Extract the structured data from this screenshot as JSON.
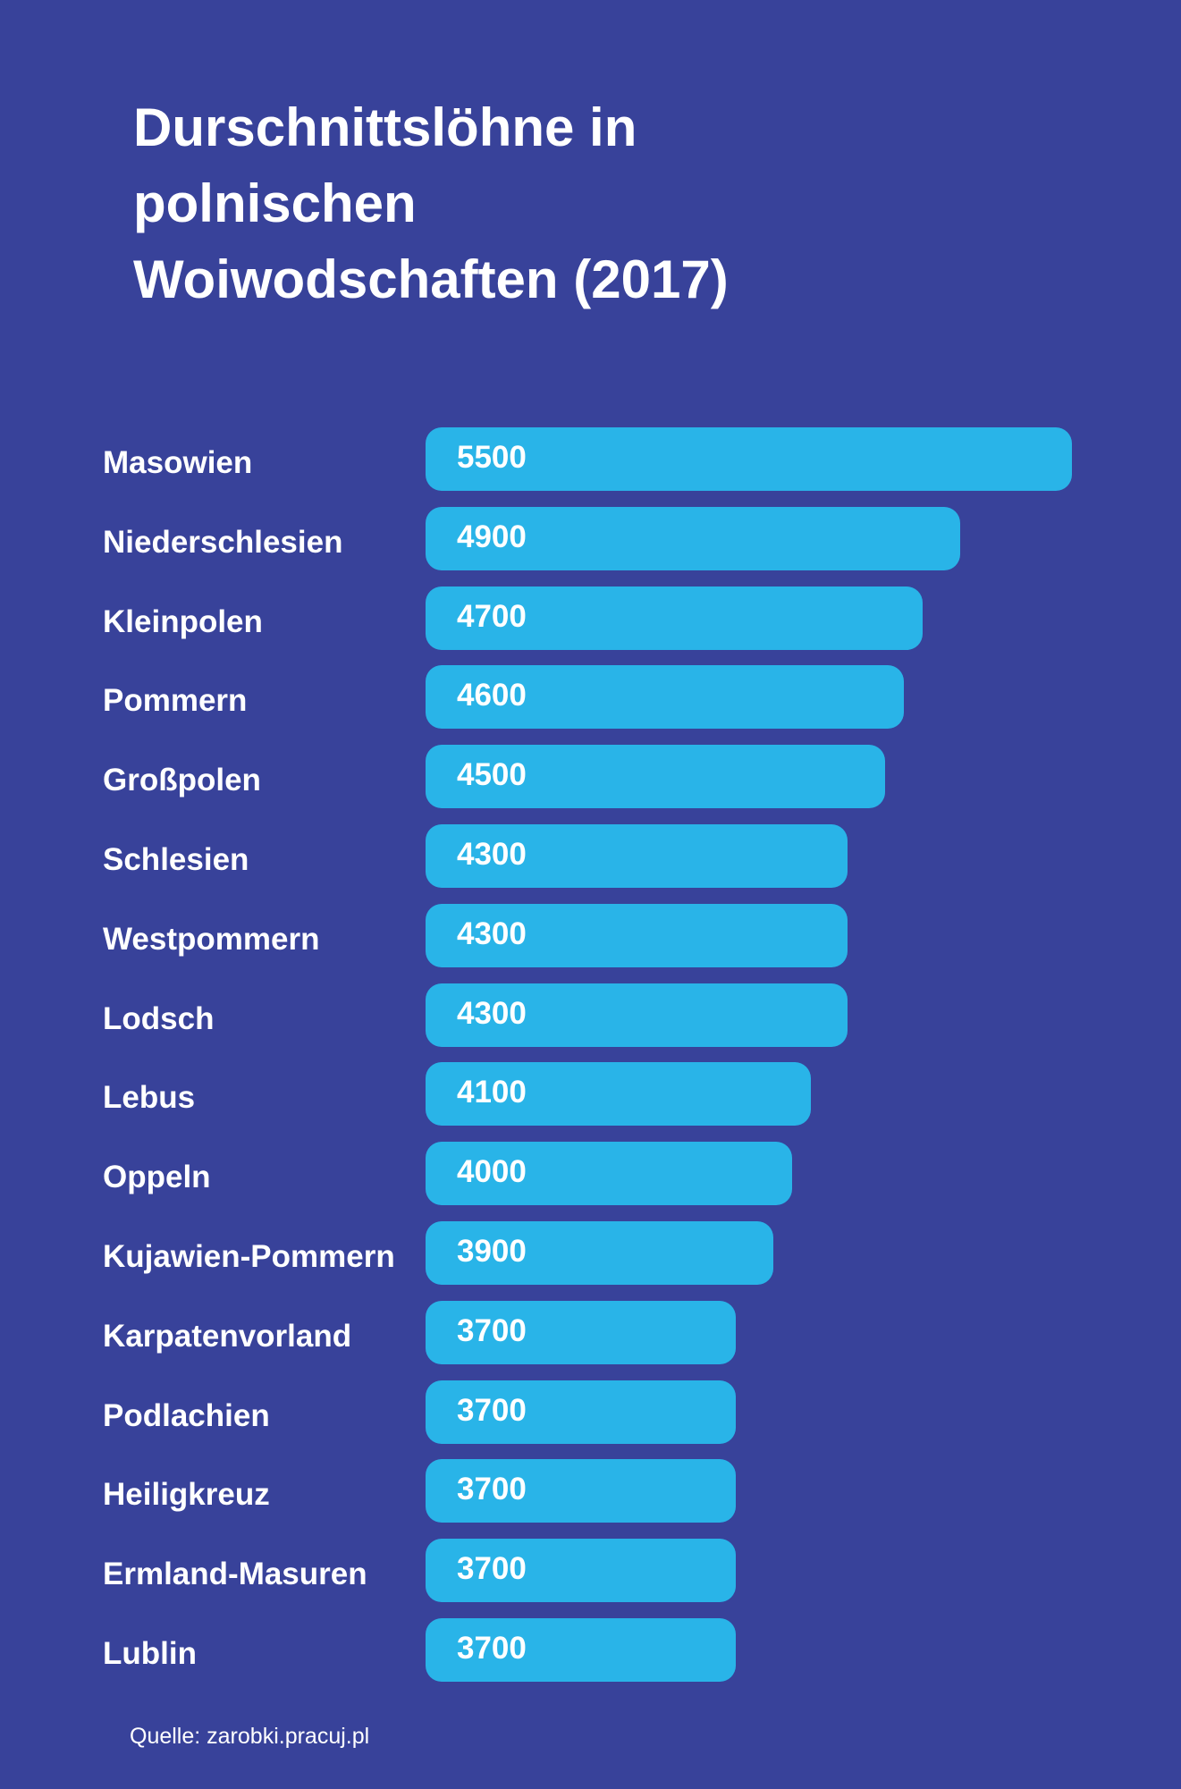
{
  "chart_data": {
    "type": "bar",
    "orientation": "horizontal",
    "title": "Durschnittslöhne in polnischen Woiwodschaften (2017)",
    "categories": [
      "Masowien",
      "Niederschlesien",
      "Kleinpolen",
      "Pommern",
      "Großpolen",
      "Schlesien",
      "Westpommern",
      "Lodsch",
      "Lebus",
      "Oppeln",
      "Kujawien-Pommern",
      "Karpatenvorland",
      "Podlachien",
      "Heiligkreuz",
      "Ermland-Masuren",
      "Lublin"
    ],
    "values": [
      5500,
      4900,
      4700,
      4600,
      4500,
      4300,
      4300,
      4300,
      4100,
      4000,
      3900,
      3700,
      3700,
      3700,
      3700,
      3700
    ],
    "color": "#29b4e8",
    "source": "Quelle: zarobki.pracuj.pl"
  }
}
